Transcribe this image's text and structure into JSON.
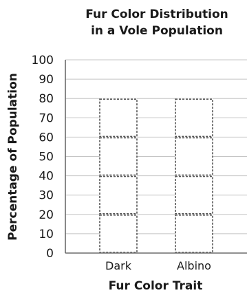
{
  "chart_data": {
    "type": "bar",
    "title_lines": [
      "Fur Color Distribution",
      "in a Vole Population"
    ],
    "xlabel": "Fur Color Trait",
    "ylabel": "Percentage of Population",
    "categories": [
      "Dark",
      "Albino"
    ],
    "values": [
      80,
      80
    ],
    "segment_boundaries": [
      20,
      40,
      60,
      80
    ],
    "ylim": [
      0,
      100
    ],
    "yticks": [
      "0",
      "10",
      "20",
      "30",
      "40",
      "50",
      "60",
      "70",
      "80",
      "90",
      "100"
    ],
    "grid": true,
    "legend": "none",
    "bar_style": "dashed-outline"
  }
}
